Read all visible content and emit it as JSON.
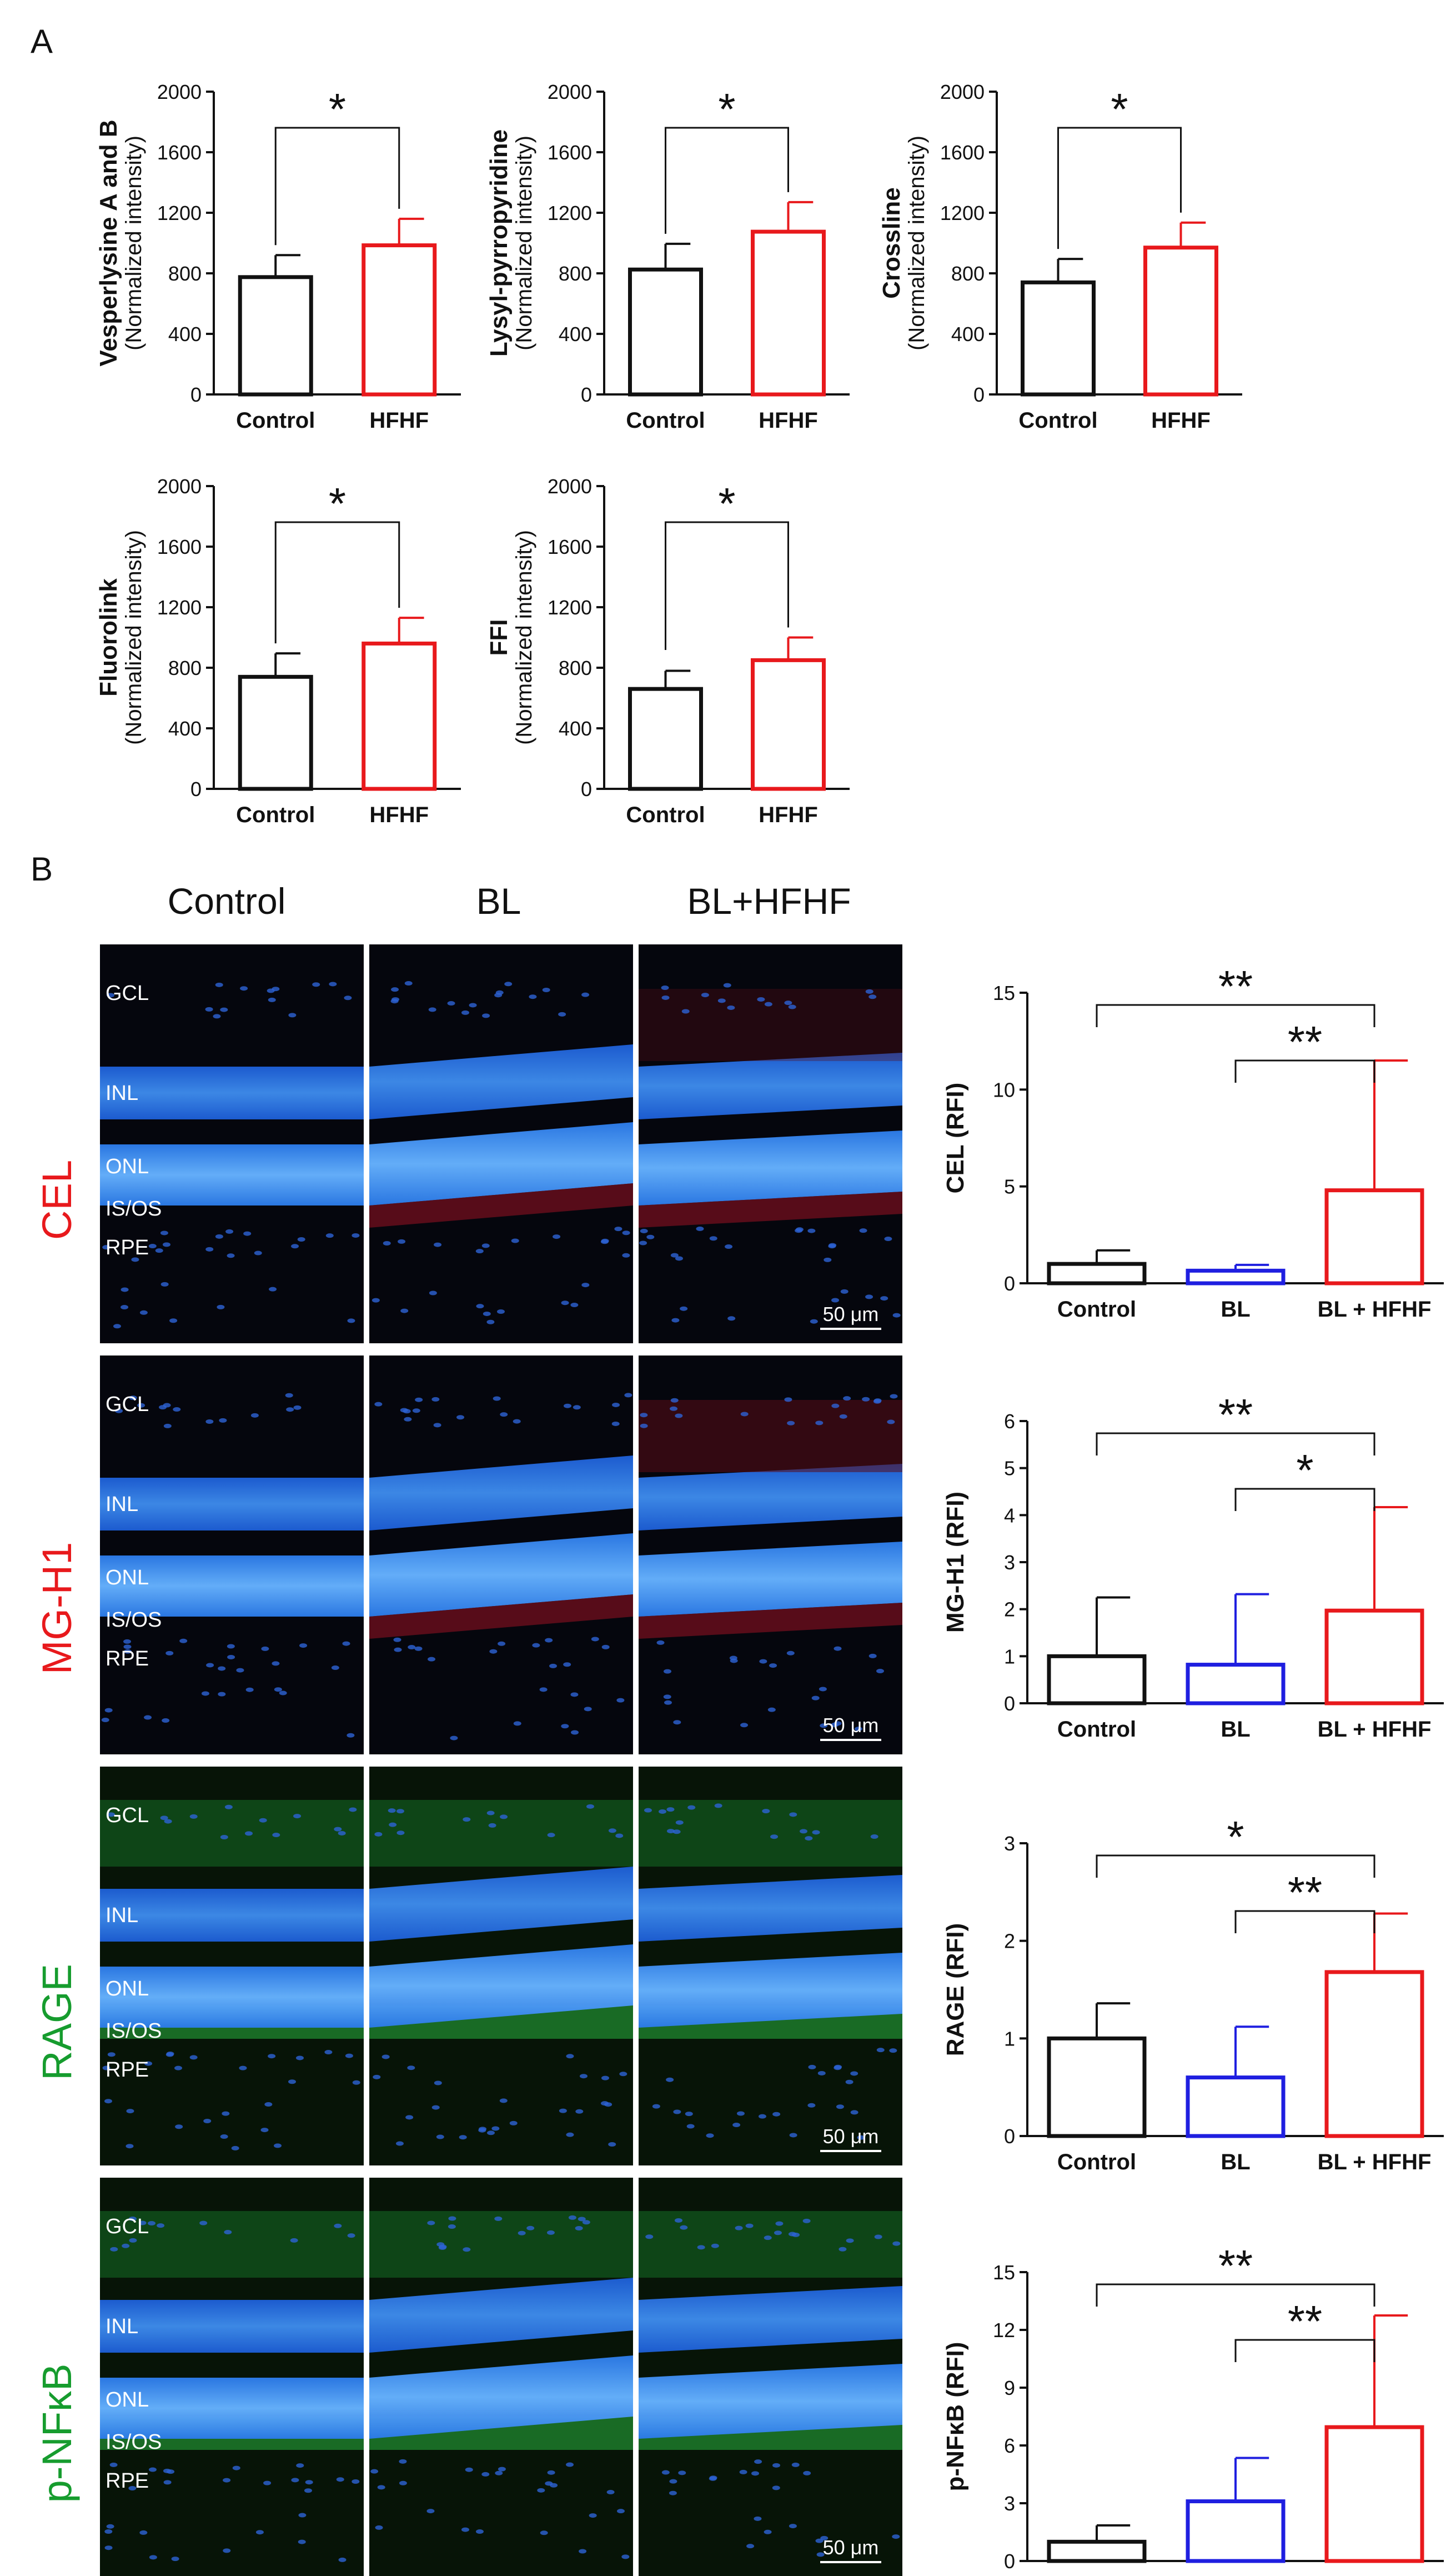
{
  "panel_a": {
    "label": "A"
  },
  "panel_b": {
    "label": "B",
    "column_headers": [
      "Control",
      "BL",
      "BL+HFHF"
    ],
    "row_labels": [
      {
        "text": "CEL",
        "color": "#e8191c"
      },
      {
        "text": "MG-H1",
        "color": "#e8191c"
      },
      {
        "text": "RAGE",
        "color": "#169c2e"
      },
      {
        "text": "p-NFκB",
        "color": "#169c2e"
      }
    ],
    "layer_labels": [
      "GCL",
      "INL",
      "ONL",
      "IS/OS",
      "RPE"
    ],
    "scale_bar": "50 μm"
  },
  "colors": {
    "control": "#111111",
    "bl": "#1f1fe0",
    "hfhf": "#e8191c"
  },
  "chart_data": [
    {
      "type": "bar",
      "ytitle": "Vesperlysine A and B",
      "ysub": "(Normalized intensity)",
      "categories": [
        "Control",
        "HFHF"
      ],
      "values": [
        775,
        985
      ],
      "errors": [
        145,
        175
      ],
      "ylim": [
        0,
        2000
      ],
      "yticks": [
        0,
        400,
        800,
        1200,
        1600,
        2000
      ],
      "brackets": [
        {
          "from": 0,
          "to": 1,
          "label": "*"
        }
      ]
    },
    {
      "type": "bar",
      "ytitle": "Lysyl-pyrropyridine",
      "ysub": "(Normalized intensity)",
      "categories": [
        "Control",
        "HFHF"
      ],
      "values": [
        825,
        1075
      ],
      "errors": [
        170,
        195
      ],
      "ylim": [
        0,
        2000
      ],
      "yticks": [
        0,
        400,
        800,
        1200,
        1600,
        2000
      ],
      "brackets": [
        {
          "from": 0,
          "to": 1,
          "label": "*"
        }
      ]
    },
    {
      "type": "bar",
      "ytitle": "Crossline",
      "ysub": "(Normalized intensity)",
      "categories": [
        "Control",
        "HFHF"
      ],
      "values": [
        740,
        970
      ],
      "errors": [
        155,
        165
      ],
      "ylim": [
        0,
        2000
      ],
      "yticks": [
        0,
        400,
        800,
        1200,
        1600,
        2000
      ],
      "brackets": [
        {
          "from": 0,
          "to": 1,
          "label": "*"
        }
      ]
    },
    {
      "type": "bar",
      "ytitle": "Fluorolink",
      "ysub": "(Normalized intensity)",
      "categories": [
        "Control",
        "HFHF"
      ],
      "values": [
        740,
        960
      ],
      "errors": [
        155,
        170
      ],
      "ylim": [
        0,
        2000
      ],
      "yticks": [
        0,
        400,
        800,
        1200,
        1600,
        2000
      ],
      "brackets": [
        {
          "from": 0,
          "to": 1,
          "label": "*"
        }
      ]
    },
    {
      "type": "bar",
      "ytitle": "FFI",
      "ysub": "(Normalized intensity)",
      "categories": [
        "Control",
        "HFHF"
      ],
      "values": [
        660,
        850
      ],
      "errors": [
        120,
        150
      ],
      "ylim": [
        0,
        2000
      ],
      "yticks": [
        0,
        400,
        800,
        1200,
        1600,
        2000
      ],
      "brackets": [
        {
          "from": 0,
          "to": 1,
          "label": "*"
        }
      ]
    },
    {
      "type": "bar",
      "ytitle": "CEL (RFI)",
      "ysub": "",
      "categories": [
        "Control",
        "BL",
        "BL + HFHF"
      ],
      "values": [
        1.0,
        0.65,
        4.8
      ],
      "errors": [
        0.7,
        0.3,
        6.7
      ],
      "ylim": [
        0,
        15
      ],
      "yticks": [
        0,
        5,
        10,
        15
      ],
      "brackets": [
        {
          "from": 0,
          "to": 2,
          "label": "**"
        },
        {
          "from": 1,
          "to": 2,
          "label": "**"
        }
      ]
    },
    {
      "type": "bar",
      "ytitle": "MG-H1 (RFI)",
      "ysub": "",
      "categories": [
        "Control",
        "BL",
        "BL + HFHF"
      ],
      "values": [
        1.0,
        0.82,
        1.97
      ],
      "errors": [
        1.25,
        1.5,
        2.2
      ],
      "ylim": [
        0,
        6
      ],
      "yticks": [
        0,
        1,
        2,
        3,
        4,
        5,
        6
      ],
      "brackets": [
        {
          "from": 0,
          "to": 2,
          "label": "**"
        },
        {
          "from": 1,
          "to": 2,
          "label": "*"
        }
      ]
    },
    {
      "type": "bar",
      "ytitle": "RAGE (RFI)",
      "ysub": "",
      "categories": [
        "Control",
        "BL",
        "BL + HFHF"
      ],
      "values": [
        1.0,
        0.6,
        1.68
      ],
      "errors": [
        0.36,
        0.52,
        0.6
      ],
      "ylim": [
        0,
        3
      ],
      "yticks": [
        0,
        1,
        2,
        3
      ],
      "brackets": [
        {
          "from": 0,
          "to": 2,
          "label": "*"
        },
        {
          "from": 1,
          "to": 2,
          "label": "**"
        }
      ]
    },
    {
      "type": "bar",
      "ytitle": "p-NFκB (RFI)",
      "ysub": "",
      "categories": [
        "Control",
        "BL",
        "BL + HFHF"
      ],
      "values": [
        1.0,
        3.1,
        6.95
      ],
      "errors": [
        0.85,
        2.25,
        5.8
      ],
      "ylim": [
        0,
        15
      ],
      "yticks": [
        0,
        3,
        6,
        9,
        12,
        15
      ],
      "brackets": [
        {
          "from": 0,
          "to": 2,
          "label": "**"
        },
        {
          "from": 1,
          "to": 2,
          "label": "**"
        }
      ]
    }
  ]
}
